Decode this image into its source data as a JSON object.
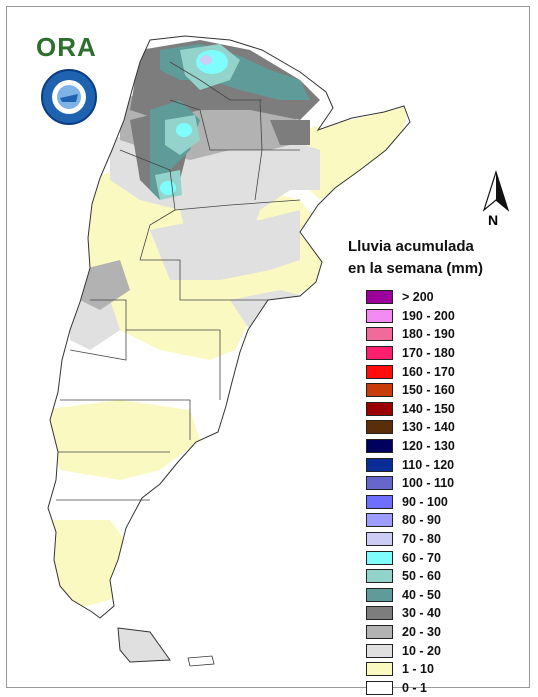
{
  "logo": {
    "text": "ORA"
  },
  "legend": {
    "title_line1": "Lluvia acumulada",
    "title_line2": "en la semana (mm)",
    "items": [
      {
        "label": "> 200",
        "color": "#9b009b"
      },
      {
        "label": "190 - 200",
        "color": "#f28cf2"
      },
      {
        "label": "180 - 190",
        "color": "#f06a9a"
      },
      {
        "label": "170 - 180",
        "color": "#ff1f6e"
      },
      {
        "label": "160 - 170",
        "color": "#ff0d0d"
      },
      {
        "label": "150 - 160",
        "color": "#c83c0c"
      },
      {
        "label": "140 - 150",
        "color": "#9a0000"
      },
      {
        "label": "130 - 140",
        "color": "#5a2e0a"
      },
      {
        "label": "120 - 130",
        "color": "#00005e"
      },
      {
        "label": "110 - 120",
        "color": "#0a2c96"
      },
      {
        "label": "100 - 110",
        "color": "#6666cc"
      },
      {
        "label": "90 - 100",
        "color": "#6f6fff"
      },
      {
        "label": "80 - 90",
        "color": "#9c9cff"
      },
      {
        "label": "70 - 80",
        "color": "#ccccf5"
      },
      {
        "label": "60 - 70",
        "color": "#7ffdfd"
      },
      {
        "label": "50 - 60",
        "color": "#94d3cb"
      },
      {
        "label": "40 - 50",
        "color": "#5f9c99"
      },
      {
        "label": "30 - 40",
        "color": "#7d7d7d"
      },
      {
        "label": "20 - 30",
        "color": "#b2b2b2"
      },
      {
        "label": "10 - 20",
        "color": "#e0e0e0"
      },
      {
        "label": "1 - 10",
        "color": "#fbf9c2"
      },
      {
        "label": "0 - 1",
        "color": "#ffffff"
      }
    ]
  },
  "north_arrow": {
    "label": "N"
  }
}
